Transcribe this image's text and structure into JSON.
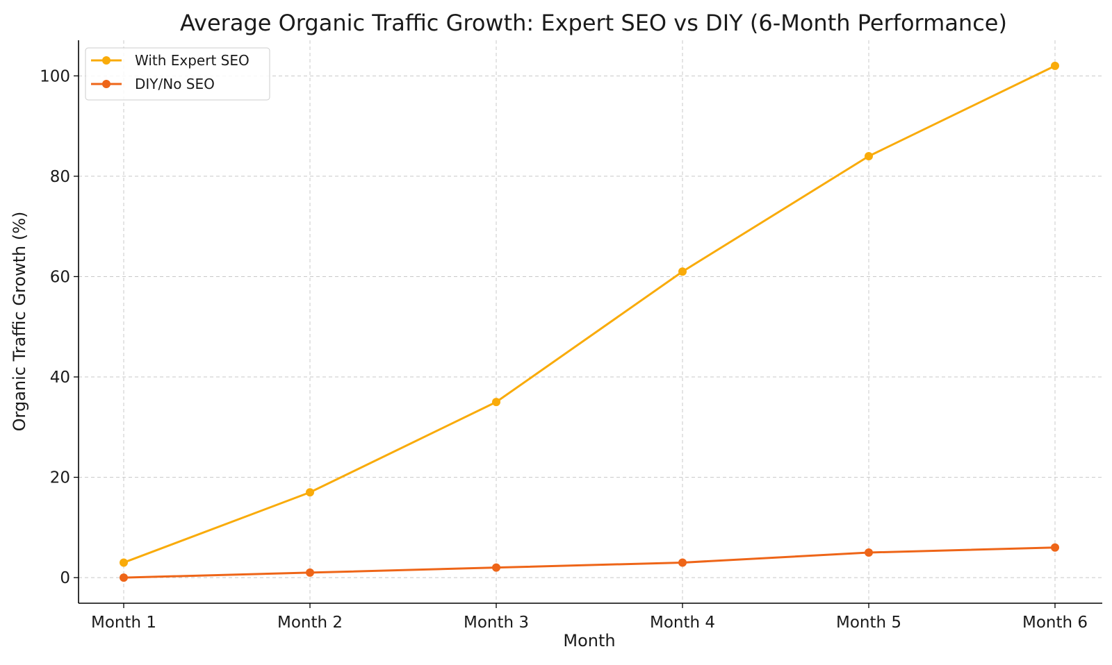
{
  "chart_data": {
    "type": "line",
    "title": "Average Organic Traffic Growth: Expert SEO vs DIY (6-Month Performance)",
    "xlabel": "Month",
    "ylabel": "Organic Traffic Growth (%)",
    "categories": [
      "Month 1",
      "Month 2",
      "Month 3",
      "Month 4",
      "Month 5",
      "Month 6"
    ],
    "series": [
      {
        "name": "With Expert SEO",
        "values": [
          3,
          17,
          35,
          61,
          84,
          102
        ],
        "color": "#F9AB0A"
      },
      {
        "name": "DIY/No SEO",
        "values": [
          0,
          1,
          2,
          3,
          5,
          6
        ],
        "color": "#EE6518"
      }
    ],
    "ylim": [
      -5.1,
      107.1
    ],
    "yticks": [
      0,
      20,
      40,
      60,
      80,
      100
    ],
    "grid": true,
    "legend_position": "top-left"
  }
}
